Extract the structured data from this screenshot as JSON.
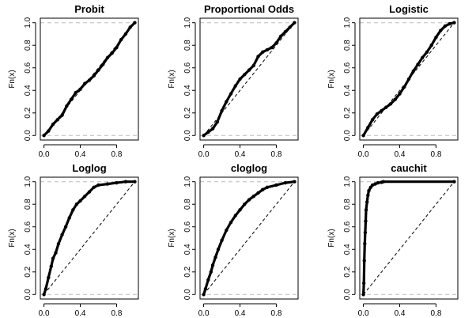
{
  "figure": {
    "background": "#ffffff",
    "ecdf_color": "#000000",
    "reference_color": "#000000",
    "limit_color": "#bbbbbb"
  },
  "chart_data": [
    {
      "type": "line",
      "title": "Probit",
      "xlabel": "",
      "ylabel": "Fn(x)",
      "xlim": [
        -0.04,
        1.04
      ],
      "ylim": [
        -0.04,
        1.04
      ],
      "xticks": [
        0.0,
        0.4,
        0.8
      ],
      "xtick_labels": [
        "0.0",
        "0.4",
        "0.8"
      ],
      "yticks": [
        0.0,
        0.2,
        0.4,
        0.6,
        0.8,
        1.0
      ],
      "ytick_labels": [
        "0.0",
        "0.2",
        "0.4",
        "0.6",
        "0.8",
        "1.0"
      ],
      "horizontal_dashed_lines": [
        0,
        1
      ],
      "reference_diagonal": true,
      "series": [
        {
          "x": [
            0.0,
            0.05,
            0.1,
            0.15,
            0.2,
            0.25,
            0.3,
            0.35,
            0.4,
            0.45,
            0.5,
            0.55,
            0.6,
            0.65,
            0.7,
            0.75,
            0.8,
            0.85,
            0.9,
            0.95,
            1.0
          ],
          "y": [
            0.0,
            0.04,
            0.1,
            0.14,
            0.18,
            0.26,
            0.32,
            0.38,
            0.41,
            0.46,
            0.49,
            0.53,
            0.58,
            0.63,
            0.69,
            0.73,
            0.78,
            0.85,
            0.9,
            0.96,
            1.0
          ]
        }
      ]
    },
    {
      "type": "line",
      "title": "Proportional Odds",
      "xlabel": "",
      "ylabel": "Fn(x)",
      "xlim": [
        -0.04,
        1.04
      ],
      "ylim": [
        -0.04,
        1.04
      ],
      "xticks": [
        0.0,
        0.4,
        0.8
      ],
      "xtick_labels": [
        "0.0",
        "0.4",
        "0.8"
      ],
      "yticks": [
        0.0,
        0.2,
        0.4,
        0.6,
        0.8,
        1.0
      ],
      "ytick_labels": [
        "0.0",
        "0.2",
        "0.4",
        "0.6",
        "0.8",
        "1.0"
      ],
      "horizontal_dashed_lines": [
        0,
        1
      ],
      "reference_diagonal": true,
      "series": [
        {
          "x": [
            0.0,
            0.05,
            0.1,
            0.15,
            0.2,
            0.25,
            0.3,
            0.35,
            0.4,
            0.45,
            0.5,
            0.55,
            0.6,
            0.65,
            0.7,
            0.75,
            0.8,
            0.85,
            0.9,
            0.95,
            1.0
          ],
          "y": [
            0.0,
            0.03,
            0.06,
            0.12,
            0.22,
            0.3,
            0.37,
            0.44,
            0.5,
            0.54,
            0.58,
            0.62,
            0.7,
            0.74,
            0.76,
            0.78,
            0.82,
            0.88,
            0.92,
            0.96,
            1.0
          ]
        }
      ]
    },
    {
      "type": "line",
      "title": "Logistic",
      "xlabel": "",
      "ylabel": "Fn(x)",
      "xlim": [
        -0.04,
        1.04
      ],
      "ylim": [
        -0.04,
        1.04
      ],
      "xticks": [
        0.0,
        0.4,
        0.8
      ],
      "xtick_labels": [
        "0.0",
        "0.4",
        "0.8"
      ],
      "yticks": [
        0.0,
        0.2,
        0.4,
        0.6,
        0.8,
        1.0
      ],
      "ytick_labels": [
        "0.0",
        "0.2",
        "0.4",
        "0.6",
        "0.8",
        "1.0"
      ],
      "horizontal_dashed_lines": [
        0,
        1
      ],
      "reference_diagonal": true,
      "series": [
        {
          "x": [
            0.0,
            0.05,
            0.1,
            0.15,
            0.2,
            0.25,
            0.3,
            0.35,
            0.4,
            0.45,
            0.5,
            0.55,
            0.6,
            0.65,
            0.7,
            0.75,
            0.8,
            0.85,
            0.9,
            0.95,
            1.0
          ],
          "y": [
            0.0,
            0.07,
            0.14,
            0.19,
            0.22,
            0.25,
            0.28,
            0.32,
            0.37,
            0.43,
            0.5,
            0.57,
            0.63,
            0.69,
            0.74,
            0.8,
            0.87,
            0.93,
            0.97,
            0.99,
            1.0
          ]
        }
      ]
    },
    {
      "type": "line",
      "title": "Loglog",
      "xlabel": "",
      "ylabel": "Fn(x)",
      "xlim": [
        -0.04,
        1.04
      ],
      "ylim": [
        -0.04,
        1.04
      ],
      "xticks": [
        0.0,
        0.4,
        0.8
      ],
      "xtick_labels": [
        "0.0",
        "0.4",
        "0.8"
      ],
      "yticks": [
        0.0,
        0.2,
        0.4,
        0.6,
        0.8,
        1.0
      ],
      "ytick_labels": [
        "0.0",
        "0.2",
        "0.4",
        "0.6",
        "0.8",
        "1.0"
      ],
      "horizontal_dashed_lines": [
        0,
        1
      ],
      "reference_diagonal": true,
      "series": [
        {
          "x": [
            0.0,
            0.02,
            0.05,
            0.08,
            0.1,
            0.13,
            0.16,
            0.2,
            0.24,
            0.28,
            0.32,
            0.36,
            0.4,
            0.45,
            0.5,
            0.55,
            0.6,
            0.7,
            0.8,
            0.9,
            1.0
          ],
          "y": [
            0.0,
            0.05,
            0.15,
            0.25,
            0.32,
            0.37,
            0.45,
            0.53,
            0.6,
            0.68,
            0.75,
            0.8,
            0.83,
            0.87,
            0.91,
            0.95,
            0.97,
            0.98,
            0.99,
            1.0,
            1.0
          ]
        }
      ]
    },
    {
      "type": "line",
      "title": "cloglog",
      "xlabel": "",
      "ylabel": "Fn(x)",
      "xlim": [
        -0.04,
        1.04
      ],
      "ylim": [
        -0.04,
        1.04
      ],
      "xticks": [
        0.0,
        0.4,
        0.8
      ],
      "xtick_labels": [
        "0.0",
        "0.4",
        "0.8"
      ],
      "yticks": [
        0.0,
        0.2,
        0.4,
        0.6,
        0.8,
        1.0
      ],
      "ytick_labels": [
        "0.0",
        "0.2",
        "0.4",
        "0.6",
        "0.8",
        "1.0"
      ],
      "horizontal_dashed_lines": [
        0,
        1
      ],
      "reference_diagonal": true,
      "series": [
        {
          "x": [
            0.0,
            0.02,
            0.05,
            0.08,
            0.1,
            0.13,
            0.16,
            0.2,
            0.25,
            0.3,
            0.35,
            0.4,
            0.45,
            0.5,
            0.55,
            0.6,
            0.65,
            0.7,
            0.8,
            0.9,
            1.0
          ],
          "y": [
            0.0,
            0.05,
            0.13,
            0.2,
            0.26,
            0.33,
            0.4,
            0.48,
            0.57,
            0.64,
            0.7,
            0.75,
            0.8,
            0.84,
            0.87,
            0.9,
            0.93,
            0.95,
            0.97,
            0.99,
            1.0
          ]
        }
      ]
    },
    {
      "type": "line",
      "title": "cauchit",
      "xlabel": "",
      "ylabel": "Fn(x)",
      "xlim": [
        -0.04,
        1.04
      ],
      "ylim": [
        -0.04,
        1.04
      ],
      "xticks": [
        0.0,
        0.4,
        0.8
      ],
      "xtick_labels": [
        "0.0",
        "0.4",
        "0.8"
      ],
      "yticks": [
        0.0,
        0.2,
        0.4,
        0.6,
        0.8,
        1.0
      ],
      "ytick_labels": [
        "0.0",
        "0.2",
        "0.4",
        "0.6",
        "0.8",
        "1.0"
      ],
      "horizontal_dashed_lines": [
        0,
        1
      ],
      "reference_diagonal": true,
      "series": [
        {
          "x": [
            0.0,
            0.005,
            0.01,
            0.015,
            0.02,
            0.025,
            0.03,
            0.04,
            0.05,
            0.06,
            0.08,
            0.1,
            0.13,
            0.16,
            0.2,
            0.22,
            1.0
          ],
          "y": [
            0.0,
            0.1,
            0.3,
            0.45,
            0.55,
            0.65,
            0.75,
            0.82,
            0.88,
            0.92,
            0.95,
            0.97,
            0.98,
            0.99,
            0.995,
            1.0,
            1.0
          ]
        }
      ]
    }
  ]
}
